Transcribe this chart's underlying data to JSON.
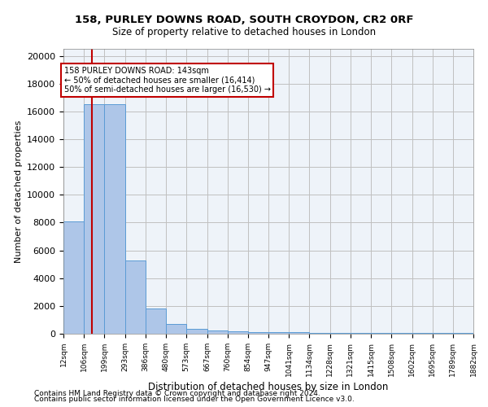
{
  "title1": "158, PURLEY DOWNS ROAD, SOUTH CROYDON, CR2 0RF",
  "title2": "Size of property relative to detached houses in London",
  "xlabel": "Distribution of detached houses by size in London",
  "ylabel": "Number of detached properties",
  "footnote1": "Contains HM Land Registry data © Crown copyright and database right 2024.",
  "footnote2": "Contains public sector information licensed under the Open Government Licence v3.0.",
  "annotation_line1": "158 PURLEY DOWNS ROAD: 143sqm",
  "annotation_line2": "← 50% of detached houses are smaller (16,414)",
  "annotation_line3": "50% of semi-detached houses are larger (16,530) →",
  "bin_edges": [
    12,
    106,
    199,
    293,
    386,
    480,
    573,
    667,
    760,
    854,
    947,
    1041,
    1134,
    1228,
    1321,
    1415,
    1508,
    1602,
    1695,
    1789,
    1882
  ],
  "bin_labels": [
    "12sqm",
    "106sqm",
    "199sqm",
    "293sqm",
    "386sqm",
    "480sqm",
    "573sqm",
    "667sqm",
    "760sqm",
    "854sqm",
    "947sqm",
    "1041sqm",
    "1134sqm",
    "1228sqm",
    "1321sqm",
    "1415sqm",
    "1508sqm",
    "1602sqm",
    "1695sqm",
    "1789sqm",
    "1882sqm"
  ],
  "bar_heights": [
    8100,
    16500,
    16500,
    5300,
    1800,
    700,
    380,
    250,
    175,
    140,
    120,
    100,
    85,
    75,
    70,
    65,
    55,
    50,
    45,
    40
  ],
  "bar_color": "#aec6e8",
  "bar_edge_color": "#5b9bd5",
  "grid_color": "#c0c0c0",
  "property_line_x": 143,
  "property_line_color": "#c00000",
  "annotation_box_color": "#c00000",
  "ylim": [
    0,
    20500
  ],
  "yticks": [
    0,
    2000,
    4000,
    6000,
    8000,
    10000,
    12000,
    14000,
    16000,
    18000,
    20000
  ],
  "bg_color": "#eef3f9"
}
